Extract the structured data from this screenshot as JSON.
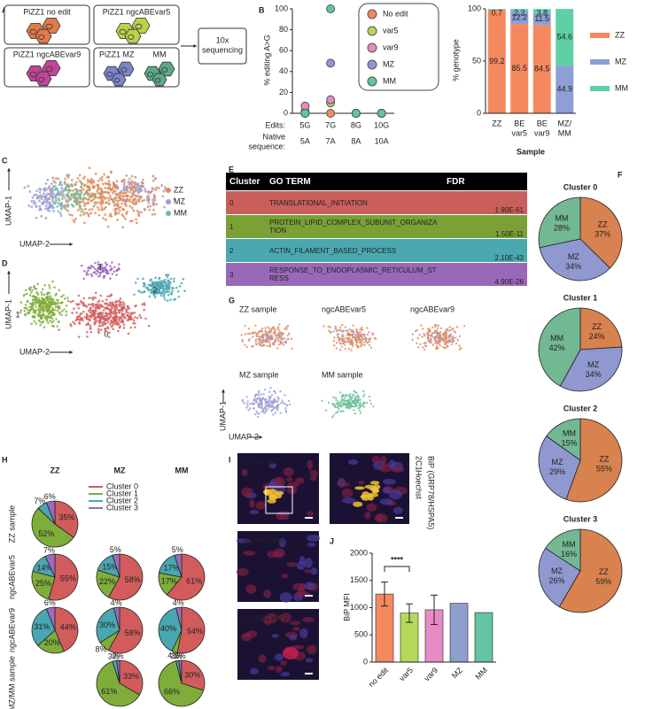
{
  "panel_labels": [
    "A",
    "B",
    "C",
    "D",
    "E",
    "F",
    "G",
    "H",
    "I",
    "J"
  ],
  "schematic": {
    "boxes": [
      "PiZZ1 no edit",
      "PiZZ1 ngcABEvar5",
      "PiZZ1 ngcABEvar9",
      "PiZZ1 MZ"
    ],
    "extra_label": "MM",
    "sequencing": [
      "10x",
      "sequencing"
    ],
    "cell_colors": [
      "#e07b4a",
      "#b8d24a",
      "#c2459a",
      "#7b86c9",
      "#5ea88a"
    ]
  },
  "umap_c": {
    "legend": [
      "ZZ",
      "MZ",
      "MM"
    ],
    "colors": [
      "#e08a5a",
      "#9a9ed6",
      "#6dbf98"
    ],
    "y_label": "UMAP-1",
    "x_label": "UMAP-2"
  },
  "umap_d": {
    "cluster_labels": [
      "0",
      "1",
      "2",
      "3"
    ],
    "y_label": "UMAP-1",
    "x_label": "UMAP-2"
  },
  "table_e": {
    "header": [
      "Cluster",
      "GO TERM",
      "FDR"
    ],
    "rows": [
      [
        "0",
        "TRANSLATIONAL_INITIATION",
        "1.90E-61"
      ],
      [
        "1",
        "PROTEIN_LIPID_COMPLEX_SUBUNIT_ORGANIZATION",
        "1.50E-11"
      ],
      [
        "2",
        "ACTIN_FILAMENT_BASED_PROCESS",
        "2.10E-43"
      ],
      [
        "3",
        "RESPONSE_TO_ENDOPLASMIC_RETICULUM_STRESS",
        "4.90E-26"
      ]
    ],
    "row_colors": [
      "#c95e5b",
      "#7aa036",
      "#4aa8b0",
      "#9a68b8"
    ]
  },
  "umap_g": {
    "titles": [
      "ZZ sample",
      "ngcABEvar5",
      "ngcABEvar9",
      "MZ sample",
      "MM sample"
    ],
    "y_label": "UMAP-1",
    "x_label": "UMAP-2"
  },
  "images_i": {
    "labels": [
      "ZZ no edit",
      "ngcABEvar5",
      "ngcABEvar9"
    ],
    "channels": [
      "2C1",
      "Hoechst",
      "BiP (GRP78/HSPA5)"
    ],
    "channel_colors": [
      "#3aa63a",
      "#3d5afe",
      "#c62828"
    ]
  },
  "chart_data": [
    {
      "type": "dot",
      "y_label": "% editing A>G",
      "edits_label": "Edits:",
      "native_label": [
        "Native",
        "sequence:"
      ],
      "categories": [
        "5G",
        "7G",
        "8G",
        "10G"
      ],
      "native_sequence": [
        "5A",
        "7A",
        "8A",
        "10A"
      ],
      "series": [
        {
          "name": "No edit",
          "color": "#f08a5d",
          "values": [
            0,
            0,
            0,
            0
          ]
        },
        {
          "name": "var5",
          "color": "#b6d65b",
          "values": [
            2,
            10,
            0,
            0
          ]
        },
        {
          "name": "var9",
          "color": "#e68ac2",
          "values": [
            7,
            13,
            0,
            0
          ]
        },
        {
          "name": "MZ",
          "color": "#8f96d8",
          "values": [
            0,
            48,
            0,
            0
          ]
        },
        {
          "name": "MM",
          "color": "#5cc8a0",
          "values": [
            0,
            100,
            0,
            0
          ]
        }
      ],
      "ylim": [
        0,
        100
      ],
      "yticks": [
        0,
        20,
        40,
        60,
        80,
        100
      ]
    },
    {
      "type": "stacked_bar",
      "y_label": "% genotype",
      "x_label": "Sample",
      "categories": [
        [
          "ZZ"
        ],
        [
          "BE",
          "var5"
        ],
        [
          "BE",
          "var9"
        ],
        [
          "MZ/",
          "MM"
        ]
      ],
      "series": [
        {
          "name": "ZZ",
          "color": "#f4895f",
          "values": [
            99.2,
            85.5,
            84.5,
            0.42
          ]
        },
        {
          "name": "MZ",
          "color": "#8d9fd6",
          "values": [
            null,
            12.2,
            11.5,
            44.9
          ]
        },
        {
          "name": "MM",
          "color": "#5fd0a6",
          "values": [
            0.7,
            2.2,
            3.8,
            54.6
          ]
        }
      ],
      "ylim": [
        0,
        100
      ],
      "yticks": [
        0,
        50,
        100
      ]
    },
    {
      "type": "pie",
      "title": "Cluster 0",
      "title_color": "#d06b6b",
      "categories": [
        "ZZ",
        "MZ",
        "MM"
      ],
      "colors": [
        "#d8824f",
        "#8f99cf",
        "#72b893"
      ],
      "values": [
        37,
        34,
        28
      ],
      "value_labels": [
        "37%",
        "34%",
        "28%"
      ]
    },
    {
      "type": "pie",
      "title": "Cluster 1",
      "title_color": "#8fb04a",
      "categories": [
        "ZZ",
        "MZ",
        "MM"
      ],
      "colors": [
        "#d8824f",
        "#8f99cf",
        "#72b893"
      ],
      "values": [
        24,
        34,
        42
      ],
      "value_labels": [
        "24%",
        "34%",
        "42%"
      ]
    },
    {
      "type": "pie",
      "title": "Cluster 2",
      "title_color": "#4fb0bd",
      "categories": [
        "ZZ",
        "MZ",
        "MM"
      ],
      "colors": [
        "#d8824f",
        "#8f99cf",
        "#72b893"
      ],
      "values": [
        55,
        29,
        15
      ],
      "value_labels": [
        "55%",
        "29%",
        "15%"
      ]
    },
    {
      "type": "pie",
      "title": "Cluster 3",
      "title_color": "#8a62b0",
      "categories": [
        "ZZ",
        "MZ",
        "MM"
      ],
      "colors": [
        "#d8824f",
        "#8f99cf",
        "#72b893"
      ],
      "values": [
        59,
        26,
        16
      ],
      "value_labels": [
        "59%",
        "26%",
        "16%"
      ]
    },
    {
      "type": "pie_grid",
      "column_headers": [
        "ZZ",
        "MZ",
        "MM"
      ],
      "column_colors": [
        "#e0823f",
        "#9aa0d6",
        "#7ccaa0"
      ],
      "row_labels": [
        "ZZ sample",
        "ngcABEvar5",
        "ngcABEvar9",
        "MZ/MM sample"
      ],
      "series": [
        {
          "name": "Cluster 0",
          "color": "#d25c5c"
        },
        {
          "name": "Cluster 1",
          "color": "#7fad3a"
        },
        {
          "name": "Cluster 2",
          "color": "#4aa6b0"
        },
        {
          "name": "Cluster 3",
          "color": "#9b6bbf"
        }
      ],
      "cells": [
        [
          {
            "values": [
              35,
              52,
              7,
              6
            ],
            "value_labels": [
              "35%",
              "52%",
              "7%",
              "6%"
            ]
          },
          null,
          null
        ],
        [
          {
            "values": [
              55,
              25,
              14,
              7
            ],
            "value_labels": [
              "55%",
              "25%",
              "14%",
              "7%"
            ]
          },
          {
            "values": [
              58,
              22,
              15,
              5
            ],
            "value_labels": [
              "58%",
              "22%",
              "15%",
              "5%"
            ]
          },
          {
            "values": [
              61,
              17,
              17,
              5
            ],
            "value_labels": [
              "61%",
              "17%",
              "17%",
              "5%"
            ]
          }
        ],
        [
          {
            "values": [
              44,
              20,
              31,
              6
            ],
            "value_labels": [
              "44%",
              "20%",
              "31%",
              "6%"
            ]
          },
          {
            "values": [
              58,
              8,
              30,
              4
            ],
            "value_labels": [
              "58%",
              "8%",
              "30%",
              "4%"
            ]
          },
          {
            "values": [
              54,
              4,
              40,
              4
            ],
            "value_labels": [
              "54%",
              "4%",
              "40%",
              "4%"
            ]
          }
        ],
        [
          null,
          {
            "values": [
              33,
              61,
              3,
              2
            ],
            "value_labels": [
              "33%",
              "61%",
              "3%",
              "2%"
            ]
          },
          {
            "values": [
              30,
              66,
              2,
              2
            ],
            "value_labels": [
              "30%",
              "66%",
              "2%",
              "2%"
            ]
          }
        ]
      ]
    },
    {
      "type": "bar",
      "y_label": "BiP MFI",
      "categories": [
        "no edit",
        "var5",
        "var9",
        "MZ",
        "MM"
      ],
      "colors": [
        "#f4895f",
        "#b5d95a",
        "#e88bc4",
        "#8da0cb",
        "#66c2a5"
      ],
      "values": [
        1250,
        900,
        960,
        1080,
        910
      ],
      "errors": [
        220,
        170,
        270,
        null,
        null
      ],
      "significance": "****",
      "ylim": [
        0,
        2000
      ],
      "yticks": [
        0,
        500,
        1000,
        1500,
        2000
      ]
    }
  ]
}
